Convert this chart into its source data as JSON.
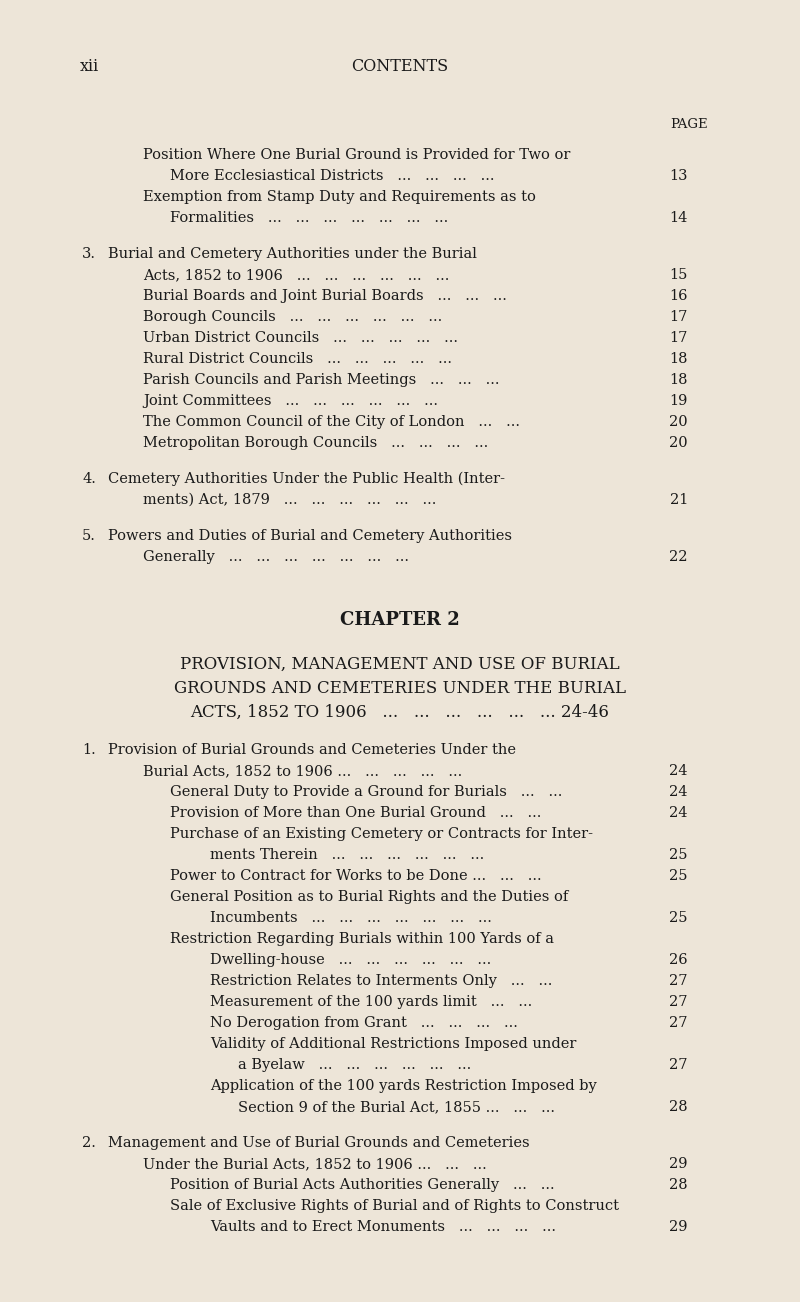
{
  "background_color": "#ede5d8",
  "text_color": "#1a1a1a",
  "page_width": 8.0,
  "page_height": 13.02,
  "dpi": 100,
  "header_xii": "xii",
  "header_contents": "CONTENTS",
  "entries": [
    {
      "indent": 0,
      "style": "page_label",
      "text": "PAGE",
      "page": ""
    },
    {
      "indent": 1,
      "style": "normal",
      "text": "Position Where One Burial Ground is Provided for Two or",
      "page": ""
    },
    {
      "indent": 2,
      "style": "normal",
      "text": "More Ecclesiastical Districts   ...   ...   ...   ...",
      "page": "13"
    },
    {
      "indent": 1,
      "style": "normal",
      "text": "Exemption from Stamp Duty and Requirements as to",
      "page": ""
    },
    {
      "indent": 2,
      "style": "normal",
      "text": "Formalities   ...   ...   ...   ...   ...   ...   ...",
      "page": "14"
    },
    {
      "indent": 0,
      "style": "gap",
      "text": "",
      "page": ""
    },
    {
      "indent": 0,
      "style": "smallcaps_numbered",
      "num": "3.",
      "text": "Burial and Cemetery Authorities under the Burial",
      "page": ""
    },
    {
      "indent": 1,
      "style": "smallcaps_cont",
      "text": "Acts, 1852 to 1906   ...   ...   ...   ...   ...   ...",
      "page": "15"
    },
    {
      "indent": 1,
      "style": "normal",
      "text": "Burial Boards and Joint Burial Boards   ...   ...   ...",
      "page": "16"
    },
    {
      "indent": 1,
      "style": "normal",
      "text": "Borough Councils   ...   ...   ...   ...   ...   ...",
      "page": "17"
    },
    {
      "indent": 1,
      "style": "normal",
      "text": "Urban District Councils   ...   ...   ...   ...   ...",
      "page": "17"
    },
    {
      "indent": 1,
      "style": "normal",
      "text": "Rural District Councils   ...   ...   ...   ...   ...",
      "page": "18"
    },
    {
      "indent": 1,
      "style": "normal",
      "text": "Parish Councils and Parish Meetings   ...   ...   ...",
      "page": "18"
    },
    {
      "indent": 1,
      "style": "normal",
      "text": "Joint Committees   ...   ...   ...   ...   ...   ...",
      "page": "19"
    },
    {
      "indent": 1,
      "style": "normal",
      "text": "The Common Council of the City of London   ...   ...",
      "page": "20"
    },
    {
      "indent": 1,
      "style": "normal",
      "text": "Metropolitan Borough Councils   ...   ...   ...   ...",
      "page": "20"
    },
    {
      "indent": 0,
      "style": "gap",
      "text": "",
      "page": ""
    },
    {
      "indent": 0,
      "style": "smallcaps_numbered",
      "num": "4.",
      "text": "Cemetery Authorities Under the Public Health (Inter-",
      "page": ""
    },
    {
      "indent": 1,
      "style": "smallcaps_cont",
      "text": "ments) Act, 1879   ...   ...   ...   ...   ...   ...",
      "page": "21"
    },
    {
      "indent": 0,
      "style": "gap",
      "text": "",
      "page": ""
    },
    {
      "indent": 0,
      "style": "smallcaps_numbered",
      "num": "5.",
      "text": "Powers and Duties of Burial and Cemetery Authorities",
      "page": ""
    },
    {
      "indent": 1,
      "style": "smallcaps_cont",
      "text": "Generally   ...   ...   ...   ...   ...   ...   ...",
      "page": "22"
    },
    {
      "indent": 0,
      "style": "big_gap",
      "text": "",
      "page": ""
    },
    {
      "indent": 0,
      "style": "chapter_heading",
      "text": "CHAPTER 2",
      "page": ""
    },
    {
      "indent": 0,
      "style": "med_gap",
      "text": "",
      "page": ""
    },
    {
      "indent": 0,
      "style": "chapter_subtitle",
      "text": "PROVISION, MANAGEMENT AND USE OF BURIAL",
      "page": ""
    },
    {
      "indent": 0,
      "style": "chapter_subtitle",
      "text": "GROUNDS AND CEMETERIES UNDER THE BURIAL",
      "page": ""
    },
    {
      "indent": 0,
      "style": "chapter_subtitle_page",
      "text": "ACTS, 1852 TO 1906   ...   ...   ...   ...   ...   ... 24-46",
      "page": ""
    },
    {
      "indent": 0,
      "style": "gap",
      "text": "",
      "page": ""
    },
    {
      "indent": 0,
      "style": "smallcaps_numbered",
      "num": "1.",
      "text": "Provision of Burial Grounds and Cemeteries Under the",
      "page": ""
    },
    {
      "indent": 1,
      "style": "smallcaps_cont",
      "text": "Burial Acts, 1852 to 1906 ...   ...   ...   ...   ...",
      "page": "24"
    },
    {
      "indent": 2,
      "style": "normal",
      "text": "General Duty to Provide a Ground for Burials   ...   ...",
      "page": "24"
    },
    {
      "indent": 2,
      "style": "normal",
      "text": "Provision of More than One Burial Ground   ...   ...",
      "page": "24"
    },
    {
      "indent": 2,
      "style": "normal",
      "text": "Purchase of an Existing Cemetery or Contracts for Inter-",
      "page": ""
    },
    {
      "indent": 3,
      "style": "normal",
      "text": "ments Therein   ...   ...   ...   ...   ...   ...",
      "page": "25"
    },
    {
      "indent": 2,
      "style": "normal",
      "text": "Power to Contract for Works to be Done ...   ...   ...",
      "page": "25"
    },
    {
      "indent": 2,
      "style": "normal",
      "text": "General Position as to Burial Rights and the Duties of",
      "page": ""
    },
    {
      "indent": 3,
      "style": "normal",
      "text": "Incumbents   ...   ...   ...   ...   ...   ...   ...",
      "page": "25"
    },
    {
      "indent": 2,
      "style": "normal",
      "text": "Restriction Regarding Burials within 100 Yards of a",
      "page": ""
    },
    {
      "indent": 3,
      "style": "normal",
      "text": "Dwelling-house   ...   ...   ...   ...   ...   ...",
      "page": "26"
    },
    {
      "indent": 3,
      "style": "normal",
      "text": "Restriction Relates to Interments Only   ...   ...",
      "page": "27"
    },
    {
      "indent": 3,
      "style": "normal",
      "text": "Measurement of the 100 yards limit   ...   ...",
      "page": "27"
    },
    {
      "indent": 3,
      "style": "normal",
      "text": "No Derogation from Grant   ...   ...   ...   ...",
      "page": "27"
    },
    {
      "indent": 3,
      "style": "normal",
      "text": "Validity of Additional Restrictions Imposed under",
      "page": ""
    },
    {
      "indent": 4,
      "style": "normal",
      "text": "a Byelaw   ...   ...   ...   ...   ...   ...",
      "page": "27"
    },
    {
      "indent": 3,
      "style": "normal",
      "text": "Application of the 100 yards Restriction Imposed by",
      "page": ""
    },
    {
      "indent": 4,
      "style": "normal",
      "text": "Section 9 of the Burial Act, 1855 ...   ...   ...",
      "page": "28"
    },
    {
      "indent": 0,
      "style": "gap",
      "text": "",
      "page": ""
    },
    {
      "indent": 0,
      "style": "smallcaps_numbered",
      "num": "2.",
      "text": "Management and Use of Burial Grounds and Cemeteries",
      "page": ""
    },
    {
      "indent": 1,
      "style": "smallcaps_cont",
      "text": "Under the Burial Acts, 1852 to 1906 ...   ...   ...",
      "page": "29"
    },
    {
      "indent": 2,
      "style": "normal",
      "text": "Position of Burial Acts Authorities Generally   ...   ...",
      "page": "28"
    },
    {
      "indent": 2,
      "style": "normal",
      "text": "Sale of Exclusive Rights of Burial and of Rights to Construct",
      "page": ""
    },
    {
      "indent": 3,
      "style": "normal",
      "text": "Vaults and to Erect Monuments   ...   ...   ...   ...",
      "page": "29"
    }
  ]
}
